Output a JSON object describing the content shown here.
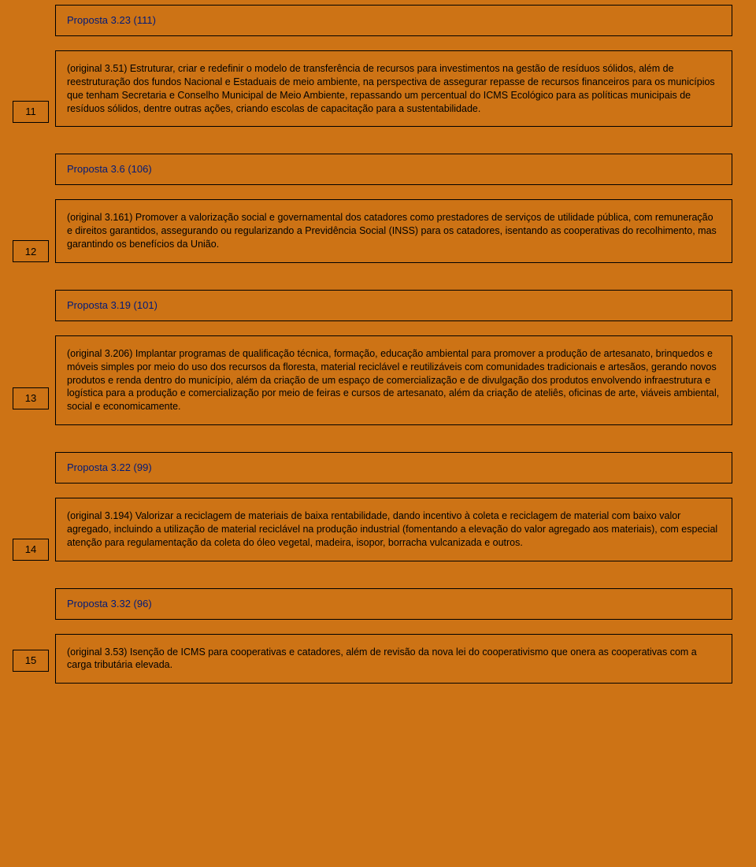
{
  "page": {
    "background_color": "#cd7315",
    "border_color": "#000000",
    "title_color": "#001a7a",
    "body_text_color": "#000000",
    "font_family": "Arial",
    "title_fontsize": 13,
    "body_fontsize": 12.5,
    "num_fontsize": 13
  },
  "items": [
    {
      "number": "11",
      "title": "Proposta 3.23 (111)",
      "body": "(original 3.51) Estruturar, criar e redefinir o modelo de transferência de recursos para investimentos na gestão de resíduos sólidos, além de reestruturação dos fundos Nacional e Estaduais de meio ambiente, na perspectiva de assegurar repasse de recursos financeiros para os municípios que tenham Secretaria e Conselho Municipal de Meio Ambiente, repassando um percentual do ICMS Ecológico para as políticas municipais de resíduos sólidos, dentre outras ações, criando escolas de capacitação para a sustentabilidade."
    },
    {
      "number": "12",
      "title": "Proposta 3.6 (106)",
      "body": "(original 3.161) Promover a valorização social e governamental dos catadores como prestadores de serviços de utilidade pública, com remuneração e direitos garantidos, assegurando ou regularizando a Previdência Social (INSS) para os catadores, isentando as cooperativas do recolhimento, mas garantindo os benefícios da União."
    },
    {
      "number": "13",
      "title": "Proposta 3.19 (101)",
      "body": "(original 3.206) Implantar programas de qualificação técnica, formação, educação ambiental para promover a produção de artesanato, brinquedos e móveis simples por meio do uso dos recursos da floresta, material reciclável e reutilizáveis com comunidades tradicionais e artesãos, gerando novos produtos e renda dentro do município, além da criação de um espaço de comercialização e de divulgação dos produtos envolvendo infraestrutura e logística para a produção e comercialização por meio de feiras e cursos de artesanato, além da criação de ateliês, oficinas de arte, viáveis ambiental, social e economicamente."
    },
    {
      "number": "14",
      "title": "Proposta 3.22 (99)",
      "body": "(original 3.194) Valorizar a reciclagem de materiais de baixa rentabilidade, dando incentivo à coleta e reciclagem de material com baixo valor agregado, incluindo a utilização de material reciclável na produção industrial (fomentando a elevação do valor agregado aos materiais), com especial atenção para regulamentação da coleta do óleo vegetal, madeira, isopor, borracha vulcanizada e outros."
    },
    {
      "number": "15",
      "title": "Proposta 3.32 (96)",
      "body": "(original 3.53) Isenção de ICMS para cooperativas e catadores, além de revisão da nova lei do cooperativismo que onera as cooperativas com a carga tributária elevada."
    }
  ]
}
